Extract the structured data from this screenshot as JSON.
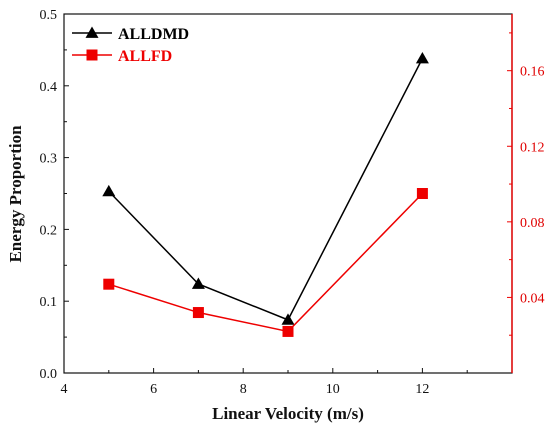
{
  "chart_data": {
    "type": "line",
    "xlabel": "Linear Velocity (m/s)",
    "ylabel": "Energy Proportion",
    "xlim": [
      4,
      14
    ],
    "ylim": [
      0,
      0.5
    ],
    "y2lim": [
      0,
      0.19
    ],
    "x_ticks": [
      "4",
      "6",
      "8",
      "10",
      "12"
    ],
    "y_ticks": [
      "0.0",
      "0.1",
      "0.2",
      "0.3",
      "0.4",
      "0.5"
    ],
    "y2_ticks": [
      "0.04",
      "0.08",
      "0.12",
      "0.16"
    ],
    "legend_position": "top-left",
    "series": [
      {
        "name": "ALLDMD",
        "axis": "left",
        "color": "#000000",
        "marker": "triangle",
        "x": [
          5,
          7,
          9,
          12
        ],
        "values": [
          0.253,
          0.124,
          0.074,
          0.438
        ]
      },
      {
        "name": "ALLFD",
        "axis": "right",
        "color": "#ee0000",
        "marker": "square",
        "x": [
          5,
          7,
          9,
          12
        ],
        "values": [
          0.047,
          0.032,
          0.022,
          0.095
        ]
      }
    ]
  }
}
